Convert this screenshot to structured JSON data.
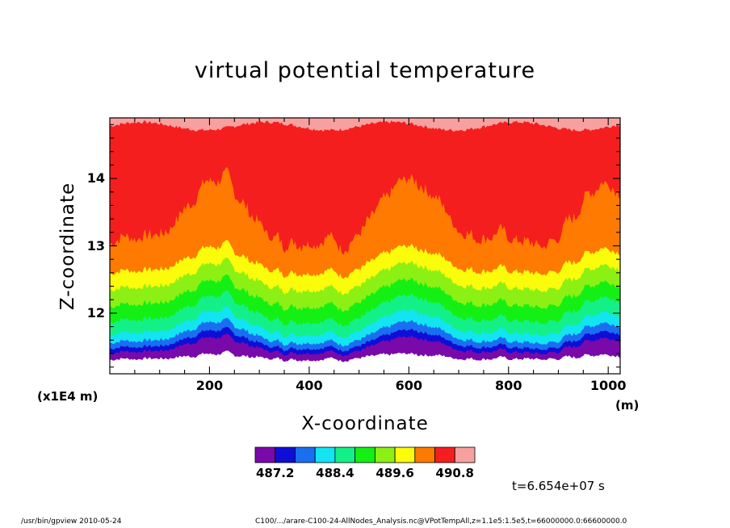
{
  "chart_data": {
    "type": "heatmap",
    "title": "virtual potential temperature",
    "xlabel": "X-coordinate",
    "ylabel": "Z-coordinate",
    "x_units": "(m)",
    "y_scale_label": "(x1E4 m)",
    "xlim": [
      0,
      1024
    ],
    "ylim": [
      11.1,
      14.9
    ],
    "x_ticks": [
      "200",
      "400",
      "600",
      "800",
      "1000"
    ],
    "y_ticks": [
      "12",
      "13",
      "14"
    ],
    "x_tick_values": [
      200,
      400,
      600,
      800,
      1000
    ],
    "y_tick_values": [
      12,
      13,
      14
    ],
    "levels": [
      487.2,
      487.6,
      488.0,
      488.4,
      488.8,
      489.2,
      489.6,
      490.0,
      490.4,
      490.8
    ],
    "colorbar_labels": [
      "487.2",
      "488.4",
      "489.6",
      "490.8"
    ],
    "colorbar_colors": [
      "#7a09a9",
      "#0e0ed6",
      "#1a6ef0",
      "#12e4f2",
      "#14f088",
      "#14f014",
      "#8cf014",
      "#fbfb0c",
      "#ff7a00",
      "#f51e1e",
      "#f7a0a0"
    ],
    "time_label": "t=6.654e+07 s",
    "footer_left": "/usr/bin/gpview   2010-05-24",
    "footer_right": "C100/.../arare-C100-24-AllNodes_Analysis.nc@VPotTempAll,z=1.1e5:1.5e5,t=66000000.0:66600000.0"
  }
}
